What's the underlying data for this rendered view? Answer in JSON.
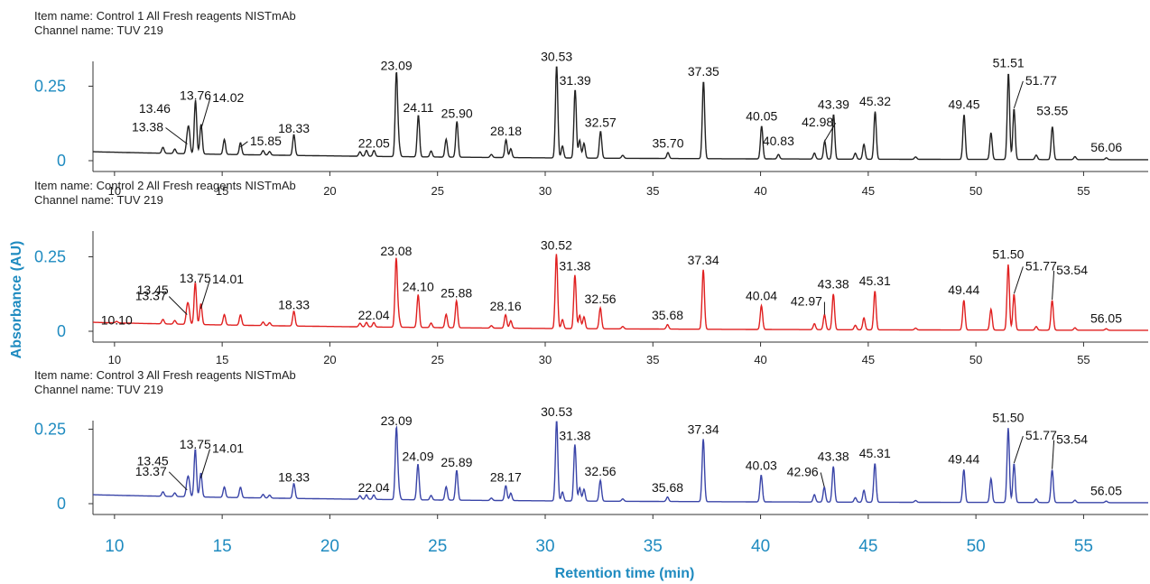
{
  "colors": {
    "axis_label": "#1F8BC0",
    "control1": "#222222",
    "control2": "#E02020",
    "control3": "#3A45A8"
  },
  "chart_data": {
    "type": "line",
    "ylabel": "Absorbance (AU)",
    "xlabel": "Retention time (min)",
    "xlim": [
      9,
      58
    ],
    "ylim": [
      0,
      0.3
    ],
    "x_ticks": [
      "10",
      "15",
      "20",
      "25",
      "30",
      "35",
      "40",
      "45",
      "50",
      "55"
    ],
    "y_ticks": [
      "0",
      "0.25"
    ],
    "panels": [
      {
        "item_name": "Item name: Control 1 All Fresh reagents NISTmAb",
        "channel_name": "Channel name: TUV 219",
        "color": "#222222",
        "peaks": [
          {
            "x": 12.25,
            "y": 0.02
          },
          {
            "x": 12.8,
            "y": 0.015
          },
          {
            "x": 13.38,
            "y": 0.05,
            "label": "13.38"
          },
          {
            "x": 13.46,
            "y": 0.07,
            "label": "13.46"
          },
          {
            "x": 13.76,
            "y": 0.18,
            "label": "13.76"
          },
          {
            "x": 14.02,
            "y": 0.1,
            "label": "14.02"
          },
          {
            "x": 15.1,
            "y": 0.05
          },
          {
            "x": 15.85,
            "y": 0.04,
            "label": "15.85"
          },
          {
            "x": 16.9,
            "y": 0.015
          },
          {
            "x": 17.2,
            "y": 0.012
          },
          {
            "x": 18.33,
            "y": 0.07,
            "label": "18.33"
          },
          {
            "x": 21.4,
            "y": 0.015
          },
          {
            "x": 21.7,
            "y": 0.02
          },
          {
            "x": 22.05,
            "y": 0.02,
            "label": "22.05"
          },
          {
            "x": 23.09,
            "y": 0.28,
            "label": "23.09"
          },
          {
            "x": 23.2,
            "y": 0.04
          },
          {
            "x": 24.11,
            "y": 0.14,
            "label": "24.11"
          },
          {
            "x": 24.7,
            "y": 0.02
          },
          {
            "x": 25.4,
            "y": 0.06
          },
          {
            "x": 25.9,
            "y": 0.12,
            "label": "25.90"
          },
          {
            "x": 27.5,
            "y": 0.01
          },
          {
            "x": 28.18,
            "y": 0.06,
            "label": "28.18"
          },
          {
            "x": 28.4,
            "y": 0.03
          },
          {
            "x": 30.53,
            "y": 0.31,
            "label": "30.53"
          },
          {
            "x": 30.8,
            "y": 0.04
          },
          {
            "x": 31.39,
            "y": 0.23,
            "label": "31.39"
          },
          {
            "x": 31.6,
            "y": 0.06
          },
          {
            "x": 31.8,
            "y": 0.05
          },
          {
            "x": 32.57,
            "y": 0.09,
            "label": "32.57"
          },
          {
            "x": 33.6,
            "y": 0.01
          },
          {
            "x": 35.7,
            "y": 0.02,
            "label": "35.70"
          },
          {
            "x": 37.35,
            "y": 0.26,
            "label": "37.35"
          },
          {
            "x": 40.05,
            "y": 0.11,
            "label": "40.05"
          },
          {
            "x": 40.83,
            "y": 0.015,
            "label": "40.83"
          },
          {
            "x": 42.5,
            "y": 0.02
          },
          {
            "x": 42.98,
            "y": 0.06,
            "label": "42.98"
          },
          {
            "x": 43.39,
            "y": 0.15,
            "label": "43.39"
          },
          {
            "x": 44.4,
            "y": 0.02
          },
          {
            "x": 44.8,
            "y": 0.05
          },
          {
            "x": 45.32,
            "y": 0.16,
            "label": "45.32"
          },
          {
            "x": 47.2,
            "y": 0.008
          },
          {
            "x": 49.45,
            "y": 0.15,
            "label": "49.45"
          },
          {
            "x": 50.7,
            "y": 0.09
          },
          {
            "x": 51.51,
            "y": 0.29,
            "label": "51.51"
          },
          {
            "x": 51.77,
            "y": 0.17,
            "label": "51.77"
          },
          {
            "x": 52.8,
            "y": 0.015
          },
          {
            "x": 53.55,
            "y": 0.11,
            "label": "53.55"
          },
          {
            "x": 54.6,
            "y": 0.01
          },
          {
            "x": 56.06,
            "y": 0.006,
            "label": "56.06"
          }
        ]
      },
      {
        "item_name": "Item name: Control 2 All Fresh reagents NISTmAb",
        "channel_name": "Channel name: TUV 219",
        "color": "#E02020",
        "peaks": [
          {
            "x": 10.1,
            "y": 0.005,
            "label": "10.10"
          },
          {
            "x": 12.25,
            "y": 0.015
          },
          {
            "x": 12.8,
            "y": 0.012
          },
          {
            "x": 13.37,
            "y": 0.05,
            "label": "13.37"
          },
          {
            "x": 13.45,
            "y": 0.045,
            "label": "13.45"
          },
          {
            "x": 13.75,
            "y": 0.14,
            "label": "13.75"
          },
          {
            "x": 14.01,
            "y": 0.07,
            "label": "14.01"
          },
          {
            "x": 15.1,
            "y": 0.035
          },
          {
            "x": 15.85,
            "y": 0.035
          },
          {
            "x": 16.9,
            "y": 0.012
          },
          {
            "x": 17.2,
            "y": 0.01
          },
          {
            "x": 18.33,
            "y": 0.05,
            "label": "18.33"
          },
          {
            "x": 21.4,
            "y": 0.012
          },
          {
            "x": 21.7,
            "y": 0.015
          },
          {
            "x": 22.04,
            "y": 0.015,
            "label": "22.04"
          },
          {
            "x": 23.08,
            "y": 0.23,
            "label": "23.08"
          },
          {
            "x": 23.2,
            "y": 0.03
          },
          {
            "x": 24.1,
            "y": 0.11,
            "label": "24.10"
          },
          {
            "x": 24.7,
            "y": 0.015
          },
          {
            "x": 25.4,
            "y": 0.045
          },
          {
            "x": 25.88,
            "y": 0.09,
            "label": "25.88"
          },
          {
            "x": 27.5,
            "y": 0.008
          },
          {
            "x": 28.16,
            "y": 0.045,
            "label": "28.16"
          },
          {
            "x": 28.4,
            "y": 0.025
          },
          {
            "x": 30.52,
            "y": 0.25,
            "label": "30.52"
          },
          {
            "x": 30.8,
            "y": 0.03
          },
          {
            "x": 31.38,
            "y": 0.18,
            "label": "31.38"
          },
          {
            "x": 31.6,
            "y": 0.045
          },
          {
            "x": 31.8,
            "y": 0.04
          },
          {
            "x": 32.56,
            "y": 0.07,
            "label": "32.56"
          },
          {
            "x": 33.6,
            "y": 0.008
          },
          {
            "x": 35.68,
            "y": 0.015,
            "label": "35.68"
          },
          {
            "x": 37.34,
            "y": 0.2,
            "label": "37.34"
          },
          {
            "x": 40.04,
            "y": 0.08,
            "label": "40.04"
          },
          {
            "x": 42.5,
            "y": 0.02
          },
          {
            "x": 42.97,
            "y": 0.05,
            "label": "42.97"
          },
          {
            "x": 43.38,
            "y": 0.12,
            "label": "43.38"
          },
          {
            "x": 44.4,
            "y": 0.015
          },
          {
            "x": 44.8,
            "y": 0.04
          },
          {
            "x": 45.31,
            "y": 0.13,
            "label": "45.31"
          },
          {
            "x": 47.2,
            "y": 0.006
          },
          {
            "x": 49.44,
            "y": 0.1,
            "label": "49.44"
          },
          {
            "x": 50.7,
            "y": 0.07
          },
          {
            "x": 51.5,
            "y": 0.22,
            "label": "51.50"
          },
          {
            "x": 51.77,
            "y": 0.12,
            "label": "51.77"
          },
          {
            "x": 52.8,
            "y": 0.012
          },
          {
            "x": 53.54,
            "y": 0.1,
            "label": "53.54"
          },
          {
            "x": 54.6,
            "y": 0.008
          },
          {
            "x": 56.05,
            "y": 0.005,
            "label": "56.05"
          }
        ]
      },
      {
        "item_name": "Item name: Control 3 All Fresh reagents NISTmAb",
        "channel_name": "Channel name: TUV 219",
        "color": "#3A45A8",
        "peaks": [
          {
            "x": 12.25,
            "y": 0.015
          },
          {
            "x": 12.8,
            "y": 0.012
          },
          {
            "x": 13.37,
            "y": 0.04,
            "label": "13.37"
          },
          {
            "x": 13.45,
            "y": 0.05,
            "label": "13.45"
          },
          {
            "x": 13.75,
            "y": 0.16,
            "label": "13.75"
          },
          {
            "x": 14.01,
            "y": 0.08,
            "label": "14.01"
          },
          {
            "x": 15.1,
            "y": 0.035
          },
          {
            "x": 15.85,
            "y": 0.035
          },
          {
            "x": 16.9,
            "y": 0.012
          },
          {
            "x": 17.2,
            "y": 0.01
          },
          {
            "x": 18.33,
            "y": 0.05,
            "label": "18.33"
          },
          {
            "x": 21.4,
            "y": 0.012
          },
          {
            "x": 21.7,
            "y": 0.015
          },
          {
            "x": 22.04,
            "y": 0.015,
            "label": "22.04"
          },
          {
            "x": 23.09,
            "y": 0.24,
            "label": "23.09"
          },
          {
            "x": 23.2,
            "y": 0.03
          },
          {
            "x": 24.09,
            "y": 0.12,
            "label": "24.09"
          },
          {
            "x": 24.7,
            "y": 0.015
          },
          {
            "x": 25.4,
            "y": 0.045
          },
          {
            "x": 25.89,
            "y": 0.1,
            "label": "25.89"
          },
          {
            "x": 27.5,
            "y": 0.008
          },
          {
            "x": 28.17,
            "y": 0.05,
            "label": "28.17"
          },
          {
            "x": 28.4,
            "y": 0.025
          },
          {
            "x": 30.53,
            "y": 0.27,
            "label": "30.53"
          },
          {
            "x": 30.8,
            "y": 0.03
          },
          {
            "x": 31.38,
            "y": 0.19,
            "label": "31.38"
          },
          {
            "x": 31.6,
            "y": 0.045
          },
          {
            "x": 31.8,
            "y": 0.04
          },
          {
            "x": 32.56,
            "y": 0.07,
            "label": "32.56"
          },
          {
            "x": 33.6,
            "y": 0.008
          },
          {
            "x": 35.68,
            "y": 0.015,
            "label": "35.68"
          },
          {
            "x": 37.34,
            "y": 0.21,
            "label": "37.34"
          },
          {
            "x": 40.03,
            "y": 0.09,
            "label": "40.03"
          },
          {
            "x": 42.5,
            "y": 0.025
          },
          {
            "x": 42.96,
            "y": 0.05,
            "label": "42.96"
          },
          {
            "x": 43.38,
            "y": 0.12,
            "label": "43.38"
          },
          {
            "x": 44.4,
            "y": 0.015
          },
          {
            "x": 44.8,
            "y": 0.04
          },
          {
            "x": 45.31,
            "y": 0.13,
            "label": "45.31"
          },
          {
            "x": 47.2,
            "y": 0.006
          },
          {
            "x": 49.44,
            "y": 0.11,
            "label": "49.44"
          },
          {
            "x": 50.7,
            "y": 0.08
          },
          {
            "x": 51.5,
            "y": 0.25,
            "label": "51.50"
          },
          {
            "x": 51.77,
            "y": 0.13,
            "label": "51.77"
          },
          {
            "x": 52.8,
            "y": 0.012
          },
          {
            "x": 53.54,
            "y": 0.11,
            "label": "53.54"
          },
          {
            "x": 54.6,
            "y": 0.008
          },
          {
            "x": 56.05,
            "y": 0.005,
            "label": "56.05"
          }
        ]
      }
    ]
  }
}
